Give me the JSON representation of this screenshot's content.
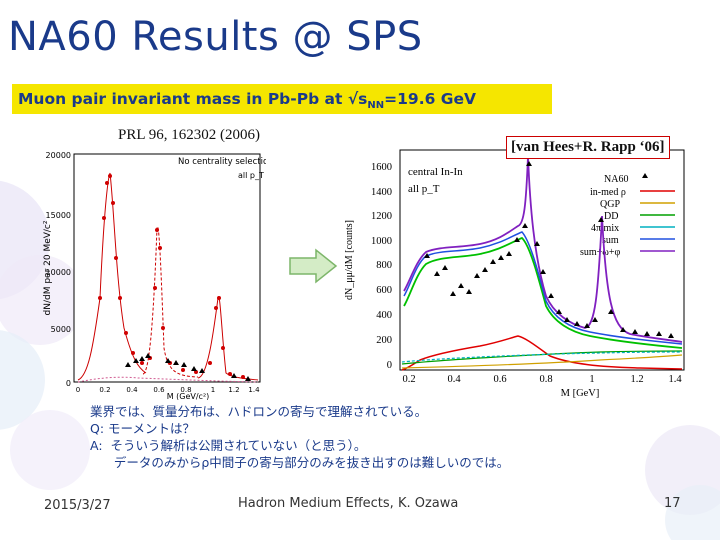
{
  "slide": {
    "title": "NA60 Results @ SPS",
    "subtitle_main": "Muon pair invariant mass in Pb-Pb at √s",
    "subtitle_sub": "NN",
    "subtitle_tail": "=19.6 GeV",
    "reference_left": "PRL 96, 162302 (2006)",
    "reference_right": "[van Hees+R. Rapp ‘06]",
    "notes": [
      "業界では、質量分布は、ハドロンの寄与で理解されている。",
      "",
      "Q: モーメントは？",
      "A:  そういう解析は公開されていない（と思う）。",
      "      データのみからρ中間子の寄与部分のみを抜き出すのは難しいのでは。"
    ],
    "footer": {
      "date": "2015/3/27",
      "center": "Hadron Medium Effects, K. Ozawa",
      "page": "17"
    }
  },
  "left_plot": {
    "ylabel": "dN/dM per 20 MeV/c²",
    "xlabel": "M (GeV/c²)",
    "legend_title": "No centrality selection",
    "legend_sub": "all p_T",
    "yticks": [
      "20000",
      "15000",
      "10000",
      "5000",
      "0"
    ],
    "xticks": [
      "0",
      "0.2",
      "0.4",
      "0.6",
      "0.8",
      "1",
      "1.2",
      "1.4"
    ]
  },
  "right_plot": {
    "ylabel": "dN_μμ/dM [counts]",
    "xlabel": "M [GeV]",
    "title_line1": "central In-In",
    "title_line2": "all p_T",
    "yticks": [
      "1600",
      "1400",
      "1200",
      "1000",
      "800",
      "600",
      "400",
      "200",
      "0"
    ],
    "xticks": [
      "0.2",
      "0.4",
      "0.6",
      "0.8",
      "1",
      "1.2",
      "1.4"
    ],
    "legend": [
      "NA60",
      "in-med ρ",
      "QGP",
      "DD",
      "4π mix",
      "sum",
      "sum+ω+φ"
    ],
    "legend_colors": [
      "#000000",
      "#e00000",
      "#d0a000",
      "#00a000",
      "#00b0c0",
      "#2050e0",
      "#8020c0"
    ]
  }
}
